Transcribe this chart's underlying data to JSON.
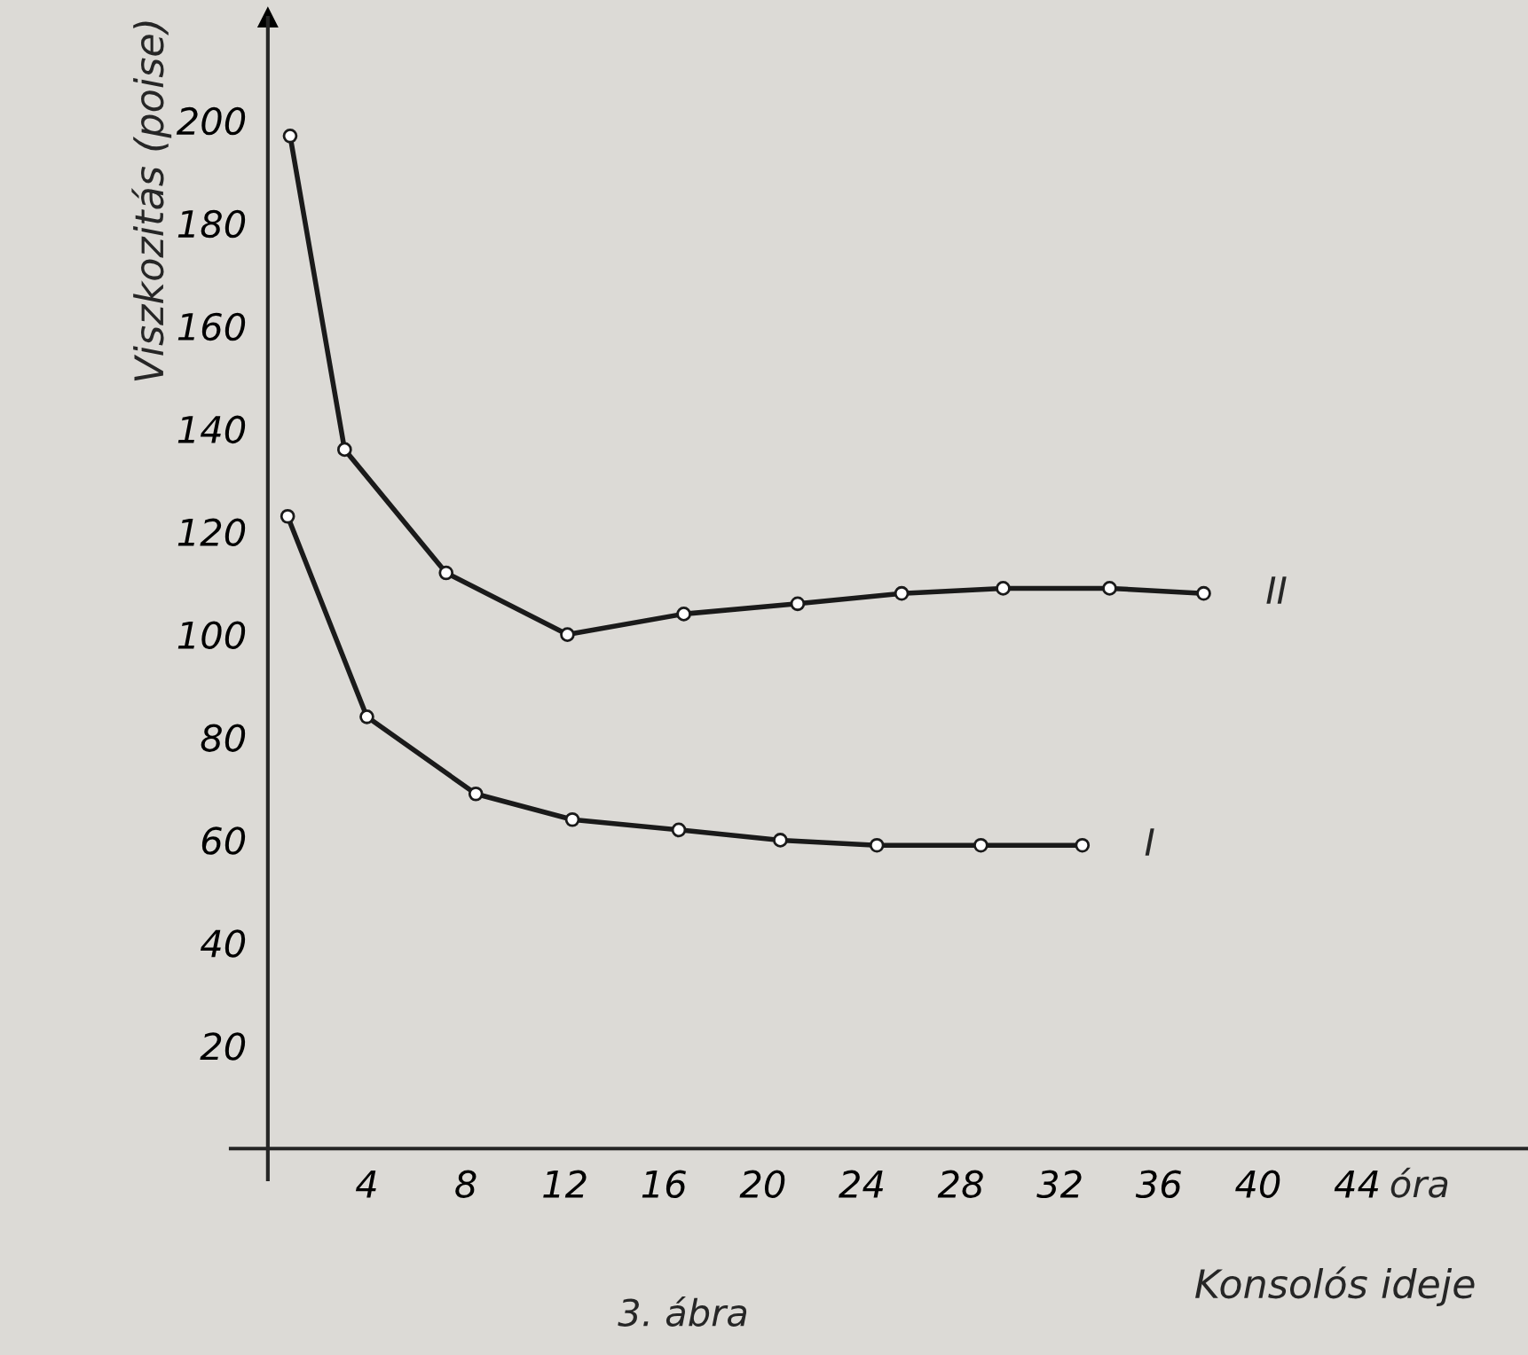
{
  "chart_data": {
    "type": "line",
    "xlabel": "Konsolós ideje",
    "ylabel": "Viszkozitás (poise)",
    "annotations": [
      "óra",
      "3. ábra"
    ],
    "xlim": [
      -1.5,
      50.9
    ],
    "ylim": [
      -6,
      220
    ],
    "xticks": [
      4,
      8,
      12,
      16,
      20,
      24,
      28,
      32,
      36,
      40,
      44
    ],
    "yticks": [
      20,
      40,
      60,
      80,
      100,
      120,
      140,
      160,
      180,
      200
    ],
    "marker": "circle",
    "line_style": "solid",
    "grid": false,
    "legend": false,
    "series": [
      {
        "name": "II",
        "color": "#1a1a1a",
        "x": [
          0.9,
          3.1,
          7.2,
          12.1,
          16.8,
          21.4,
          25.6,
          29.7,
          34,
          37.8
        ],
        "values": [
          197,
          136,
          112,
          100,
          104,
          106,
          108,
          109,
          109,
          108
        ]
      },
      {
        "name": "I",
        "color": "#1a1a1a",
        "x": [
          0.8,
          4,
          8.4,
          12.3,
          16.6,
          20.7,
          24.6,
          28.8,
          32.9
        ],
        "values": [
          123,
          84,
          69,
          64,
          62,
          60,
          59,
          59,
          59
        ]
      }
    ]
  }
}
